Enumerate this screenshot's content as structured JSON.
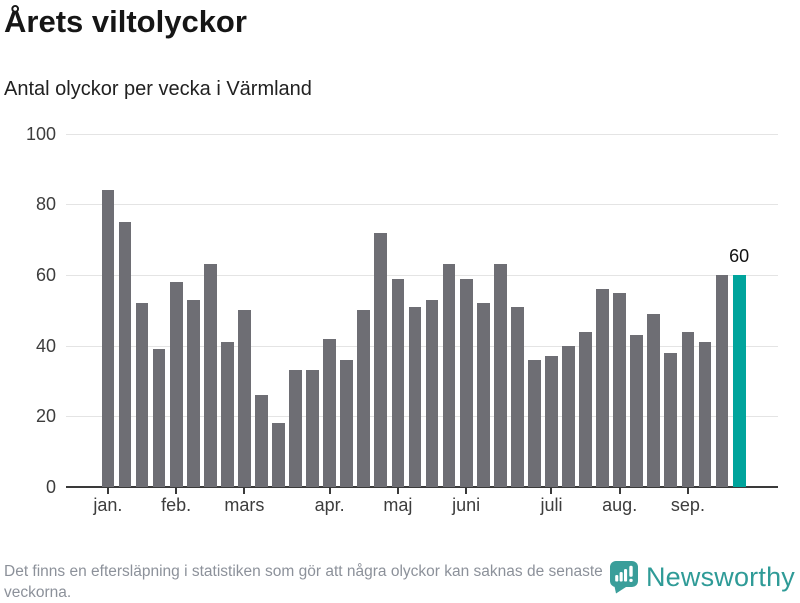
{
  "title": "Årets viltolyckor",
  "subtitle": "Antal olyckor per vecka i Värmland",
  "footnote": "Det finns en eftersläpning i statistiken som gör att några olyckor kan saknas de senaste veckorna.",
  "logo": {
    "name": "Newsworthy",
    "icon": "newsworthy-chart-bubble-icon"
  },
  "annotation": {
    "label": "60"
  },
  "colors": {
    "bar": "#6e6e74",
    "highlight": "#00a49c",
    "gridline": "#e4e4e4",
    "axis": "#3a3a3a",
    "title": "#161616",
    "footnote": "#8c919a",
    "logo_teal": "#2f9b97"
  },
  "chart_data": {
    "type": "bar",
    "title": "Årets viltolyckor",
    "subtitle": "Antal olyckor per vecka i Värmland",
    "x_unit": "vecka",
    "ylabel": "",
    "xlabel": "",
    "ylim": [
      0,
      100
    ],
    "yticks": [
      "0",
      "20",
      "40",
      "60",
      "80",
      "100"
    ],
    "grid": true,
    "values": [
      84,
      75,
      52,
      39,
      58,
      53,
      63,
      41,
      50,
      26,
      18,
      33,
      33,
      42,
      36,
      50,
      72,
      59,
      51,
      53,
      63,
      59,
      52,
      63,
      51,
      36,
      37,
      40,
      44,
      56,
      55,
      43,
      49,
      38,
      44,
      41,
      60,
      60
    ],
    "highlight_last": true,
    "last_value_label": "60",
    "months": [
      {
        "label": "jan.",
        "week_index": 0
      },
      {
        "label": "feb.",
        "week_index": 4
      },
      {
        "label": "mars",
        "week_index": 8
      },
      {
        "label": "apr.",
        "week_index": 13
      },
      {
        "label": "maj",
        "week_index": 17
      },
      {
        "label": "juni",
        "week_index": 21
      },
      {
        "label": "juli",
        "week_index": 26
      },
      {
        "label": "aug.",
        "week_index": 30
      },
      {
        "label": "sep.",
        "week_index": 34
      }
    ]
  }
}
